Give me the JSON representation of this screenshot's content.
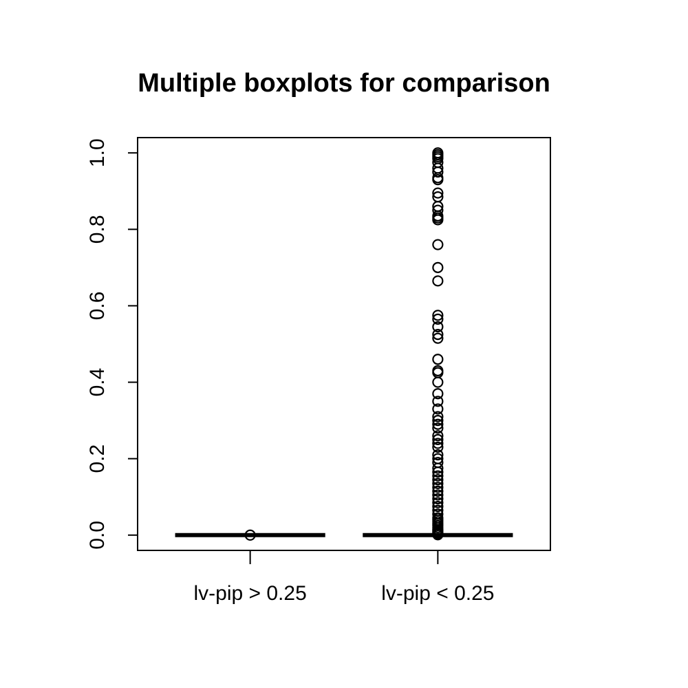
{
  "chart_data": {
    "type": "boxplot",
    "title": "Multiple boxplots for comparison",
    "xlabel": "",
    "ylabel": "",
    "ylim": [
      -0.04,
      1.04
    ],
    "yticks": [
      0.0,
      0.2,
      0.4,
      0.6,
      0.8,
      1.0
    ],
    "ytick_labels": [
      "0.0",
      "0.2",
      "0.4",
      "0.6",
      "0.8",
      "1.0"
    ],
    "categories": [
      "lv-pip > 0.25",
      "lv-pip < 0.25"
    ],
    "grid": false,
    "boxes": [
      {
        "category": "lv-pip > 0.25",
        "min": 0.0,
        "q1": 0.0,
        "median": 0.0,
        "q3": 0.0,
        "max": 0.0,
        "outliers": [
          0.0
        ]
      },
      {
        "category": "lv-pip < 0.25",
        "min": 0.0,
        "q1": 0.0,
        "median": 0.0,
        "q3": 0.0,
        "max": 0.0,
        "outliers": [
          1.0,
          0.995,
          0.99,
          0.985,
          0.975,
          0.96,
          0.95,
          0.935,
          0.93,
          0.895,
          0.885,
          0.86,
          0.85,
          0.835,
          0.83,
          0.825,
          0.76,
          0.7,
          0.665,
          0.575,
          0.565,
          0.545,
          0.525,
          0.515,
          0.46,
          0.43,
          0.425,
          0.4,
          0.37,
          0.35,
          0.33,
          0.31,
          0.3,
          0.29,
          0.28,
          0.26,
          0.25,
          0.24,
          0.23,
          0.21,
          0.2,
          0.19,
          0.175,
          0.165,
          0.155,
          0.145,
          0.135,
          0.125,
          0.115,
          0.105,
          0.095,
          0.085,
          0.075,
          0.065,
          0.055,
          0.045,
          0.04,
          0.035,
          0.03,
          0.025,
          0.02,
          0.015,
          0.012,
          0.009,
          0.006,
          0.003,
          0.001
        ]
      }
    ]
  }
}
